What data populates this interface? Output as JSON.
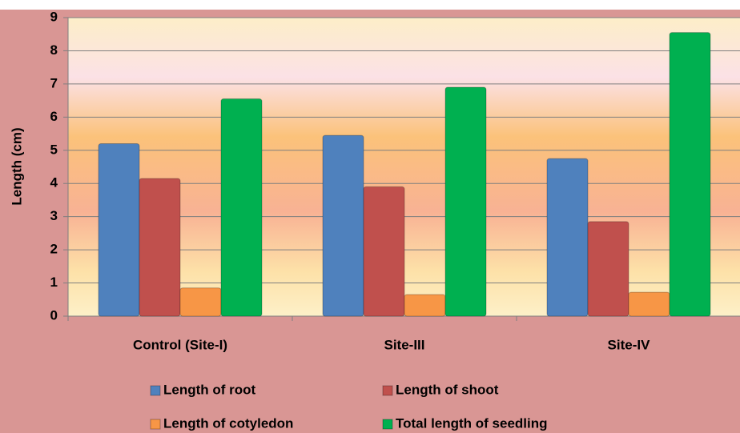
{
  "chart_data": {
    "type": "bar",
    "y_label": "Length (cm)",
    "categories": [
      "Control (Site-I)",
      "Site-III",
      "Site-IV"
    ],
    "series": [
      {
        "name": "Length of root",
        "color": "#4f81bd",
        "values": [
          5.2,
          5.45,
          4.75
        ]
      },
      {
        "name": "Length of shoot",
        "color": "#c0504d",
        "values": [
          4.15,
          3.9,
          2.85
        ]
      },
      {
        "name": "Length of cotyledon",
        "color": "#f79646",
        "values": [
          0.85,
          0.65,
          0.72
        ]
      },
      {
        "name": "Total length of seedling",
        "color": "#00b050",
        "values": [
          6.55,
          6.9,
          8.55
        ]
      }
    ],
    "ylim": [
      0,
      9
    ],
    "yticks": [
      0,
      1,
      2,
      3,
      4,
      5,
      6,
      7,
      8,
      9
    ],
    "grid": true,
    "legend": "bottom"
  }
}
